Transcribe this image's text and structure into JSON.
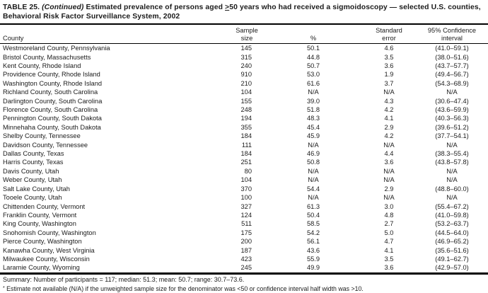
{
  "document": {
    "title": {
      "table_label": "TABLE 25. ",
      "continued": "(Continued)",
      "text_before_gte": " Estimated prevalence of persons aged ",
      "gte": ">",
      "text_after_gte": "50 years who had received a sigmoidoscopy — selected U.S. counties, Behavioral Risk Factor Surveillance System, 2002"
    },
    "summary": "Summary: Number of participants = 117; median: 51.3; mean: 50.7; range: 30.7–73.6.",
    "footnote_marker": "*",
    "footnote_text": " Estimate not available (N/A) if the unweighted sample size for the denominator was <50 or confidence interval half width was >10."
  },
  "table": {
    "header": {
      "county": "County",
      "sample_line1": "Sample",
      "sample_line2": "size",
      "percent": "%",
      "se_line1": "Standard",
      "se_line2": "error",
      "ci_line1": "95% Confidence",
      "ci_line2": "interval"
    },
    "rows": [
      [
        "Westmoreland County, Pennsylvania",
        "145",
        "50.1",
        "4.6",
        "(41.0–59.1)"
      ],
      [
        "Bristol County, Massachusetts",
        "315",
        "44.8",
        "3.5",
        "(38.0–51.6)"
      ],
      [
        "Kent County, Rhode Island",
        "240",
        "50.7",
        "3.6",
        "(43.7–57.7)"
      ],
      [
        "Providence County, Rhode Island",
        "910",
        "53.0",
        "1.9",
        "(49.4–56.7)"
      ],
      [
        "Washington County, Rhode Island",
        "210",
        "61.6",
        "3.7",
        "(54.3–68.9)"
      ],
      [
        "Richland County, South Carolina",
        "104",
        "N/A",
        "N/A",
        "N/A"
      ],
      [
        "Darlington County, South Carolina",
        "155",
        "39.0",
        "4.3",
        "(30.6–47.4)"
      ],
      [
        "Florence County, South Carolina",
        "248",
        "51.8",
        "4.2",
        "(43.6–59.9)"
      ],
      [
        "Pennington County, South Dakota",
        "194",
        "48.3",
        "4.1",
        "(40.3–56.3)"
      ],
      [
        "Minnehaha County, South Dakota",
        "355",
        "45.4",
        "2.9",
        "(39.6–51.2)"
      ],
      [
        "Shelby County, Tennessee",
        "184",
        "45.9",
        "4.2",
        "(37.7–54.1)"
      ],
      [
        "Davidson County, Tennessee",
        "111",
        "N/A",
        "N/A",
        "N/A"
      ],
      [
        "Dallas County, Texas",
        "184",
        "46.9",
        "4.4",
        "(38.3–55.4)"
      ],
      [
        "Harris County, Texas",
        "251",
        "50.8",
        "3.6",
        "(43.8–57.8)"
      ],
      [
        "Davis County, Utah",
        "80",
        "N/A",
        "N/A",
        "N/A"
      ],
      [
        "Weber County, Utah",
        "104",
        "N/A",
        "N/A",
        "N/A"
      ],
      [
        "Salt Lake County, Utah",
        "370",
        "54.4",
        "2.9",
        "(48.8–60.0)"
      ],
      [
        "Tooele County, Utah",
        "100",
        "N/A",
        "N/A",
        "N/A"
      ],
      [
        "Chittenden County, Vermont",
        "327",
        "61.3",
        "3.0",
        "(55.4–67.2)"
      ],
      [
        "Franklin County, Vermont",
        "124",
        "50.4",
        "4.8",
        "(41.0–59.8)"
      ],
      [
        "King County, Washington",
        "511",
        "58.5",
        "2.7",
        "(53.2–63.7)"
      ],
      [
        "Snohomish County, Washington",
        "175",
        "54.2",
        "5.0",
        "(44.5–64.0)"
      ],
      [
        "Pierce County, Washington",
        "200",
        "56.1",
        "4.7",
        "(46.9–65.2)"
      ],
      [
        "Kanawha County, West Virginia",
        "187",
        "43.6",
        "4.1",
        "(35.6–51.6)"
      ],
      [
        "Milwaukee County, Wisconsin",
        "423",
        "55.9",
        "3.5",
        "(49.1–62.7)"
      ],
      [
        "Laramie County, Wyoming",
        "245",
        "49.9",
        "3.6",
        "(42.9–57.0)"
      ]
    ]
  },
  "colors": {
    "text": "#1b1b1b",
    "rule": "#000000",
    "background": "#ffffff"
  }
}
